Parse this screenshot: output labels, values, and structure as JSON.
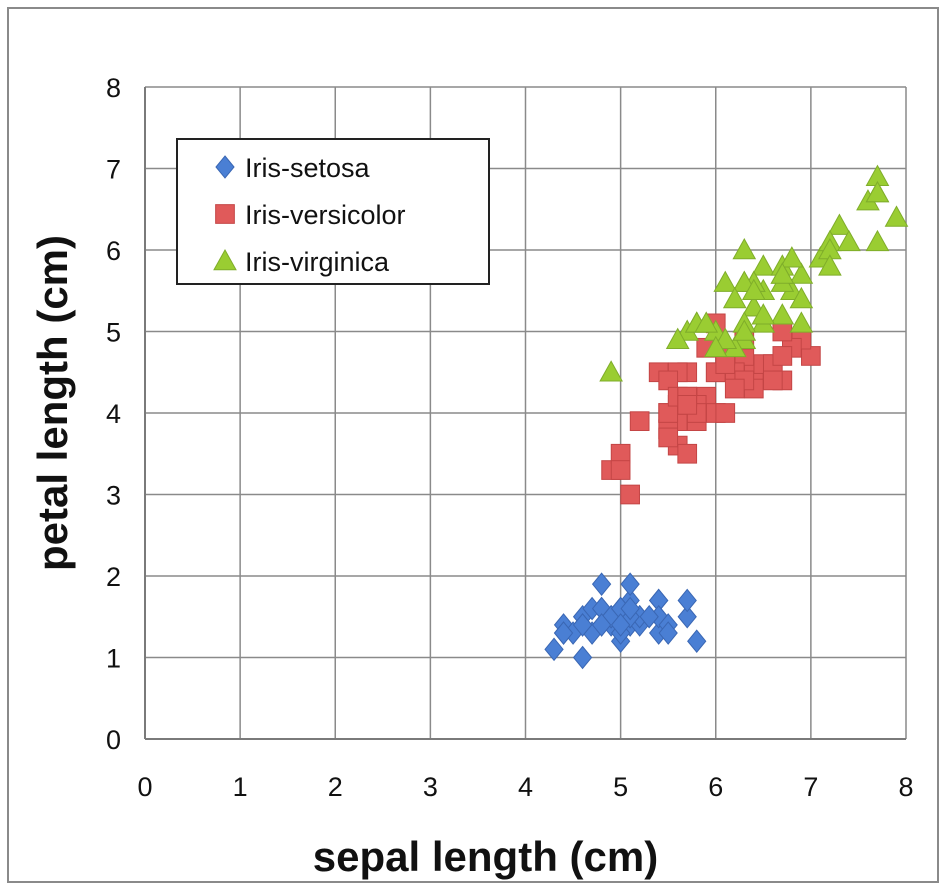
{
  "chart_data": {
    "type": "scatter",
    "title": "",
    "xlabel": "sepal length (cm)",
    "ylabel": "petal length (cm)",
    "xlim": [
      0,
      8
    ],
    "ylim": [
      0,
      8
    ],
    "xticks": [
      0,
      1,
      2,
      3,
      4,
      5,
      6,
      7,
      8
    ],
    "yticks": [
      0,
      1,
      2,
      3,
      4,
      5,
      6,
      7,
      8
    ],
    "grid": true,
    "legend_position": "top-left",
    "series": [
      {
        "name": "Iris-setosa",
        "marker": "diamond",
        "color": "#4a7fd4",
        "points": [
          [
            5.1,
            1.4
          ],
          [
            4.9,
            1.4
          ],
          [
            4.7,
            1.3
          ],
          [
            4.6,
            1.5
          ],
          [
            5.0,
            1.4
          ],
          [
            5.4,
            1.7
          ],
          [
            4.6,
            1.4
          ],
          [
            5.0,
            1.5
          ],
          [
            4.4,
            1.4
          ],
          [
            4.9,
            1.5
          ],
          [
            5.4,
            1.5
          ],
          [
            4.8,
            1.6
          ],
          [
            4.8,
            1.4
          ],
          [
            4.3,
            1.1
          ],
          [
            5.8,
            1.2
          ],
          [
            5.7,
            1.5
          ],
          [
            5.4,
            1.3
          ],
          [
            5.1,
            1.4
          ],
          [
            5.7,
            1.7
          ],
          [
            5.1,
            1.5
          ],
          [
            5.4,
            1.7
          ],
          [
            5.1,
            1.5
          ],
          [
            4.6,
            1.0
          ],
          [
            5.1,
            1.7
          ],
          [
            4.8,
            1.9
          ],
          [
            5.0,
            1.6
          ],
          [
            5.0,
            1.6
          ],
          [
            5.2,
            1.5
          ],
          [
            5.2,
            1.4
          ],
          [
            4.7,
            1.6
          ],
          [
            4.8,
            1.6
          ],
          [
            5.4,
            1.5
          ],
          [
            5.2,
            1.5
          ],
          [
            5.5,
            1.4
          ],
          [
            4.9,
            1.5
          ],
          [
            5.0,
            1.2
          ],
          [
            5.5,
            1.3
          ],
          [
            4.9,
            1.5
          ],
          [
            4.4,
            1.3
          ],
          [
            5.1,
            1.5
          ],
          [
            5.0,
            1.3
          ],
          [
            4.5,
            1.3
          ],
          [
            4.4,
            1.3
          ],
          [
            5.0,
            1.6
          ],
          [
            5.1,
            1.9
          ],
          [
            4.8,
            1.4
          ],
          [
            5.1,
            1.6
          ],
          [
            4.6,
            1.4
          ],
          [
            5.3,
            1.5
          ],
          [
            5.0,
            1.4
          ]
        ]
      },
      {
        "name": "Iris-versicolor",
        "marker": "square",
        "color": "#e05a5a",
        "points": [
          [
            7.0,
            4.7
          ],
          [
            6.4,
            4.5
          ],
          [
            6.9,
            4.9
          ],
          [
            5.5,
            4.0
          ],
          [
            6.5,
            4.6
          ],
          [
            5.7,
            4.5
          ],
          [
            6.3,
            4.7
          ],
          [
            4.9,
            3.3
          ],
          [
            6.6,
            4.6
          ],
          [
            5.2,
            3.9
          ],
          [
            5.0,
            3.5
          ],
          [
            5.9,
            4.2
          ],
          [
            6.0,
            4.0
          ],
          [
            6.1,
            4.7
          ],
          [
            5.6,
            3.6
          ],
          [
            6.7,
            4.4
          ],
          [
            5.6,
            4.5
          ],
          [
            5.8,
            4.1
          ],
          [
            6.2,
            4.5
          ],
          [
            5.6,
            3.9
          ],
          [
            5.9,
            4.8
          ],
          [
            6.1,
            4.0
          ],
          [
            6.3,
            4.9
          ],
          [
            6.1,
            4.7
          ],
          [
            6.4,
            4.3
          ],
          [
            6.6,
            4.4
          ],
          [
            6.8,
            4.8
          ],
          [
            6.7,
            5.0
          ],
          [
            6.0,
            4.5
          ],
          [
            5.7,
            3.5
          ],
          [
            5.5,
            3.8
          ],
          [
            5.5,
            3.7
          ],
          [
            5.8,
            3.9
          ],
          [
            6.0,
            5.1
          ],
          [
            5.4,
            4.5
          ],
          [
            6.0,
            4.5
          ],
          [
            6.7,
            4.7
          ],
          [
            6.3,
            4.4
          ],
          [
            5.6,
            4.1
          ],
          [
            5.5,
            4.0
          ],
          [
            5.5,
            4.4
          ],
          [
            6.1,
            4.6
          ],
          [
            5.8,
            4.0
          ],
          [
            5.0,
            3.3
          ],
          [
            5.6,
            4.2
          ],
          [
            5.7,
            4.2
          ],
          [
            5.7,
            4.2
          ],
          [
            6.2,
            4.3
          ],
          [
            5.1,
            3.0
          ],
          [
            5.7,
            4.1
          ]
        ]
      },
      {
        "name": "Iris-virginica",
        "marker": "triangle",
        "color": "#9acd32",
        "points": [
          [
            6.3,
            6.0
          ],
          [
            5.8,
            5.1
          ],
          [
            7.1,
            5.9
          ],
          [
            6.3,
            5.6
          ],
          [
            6.5,
            5.8
          ],
          [
            7.6,
            6.6
          ],
          [
            4.9,
            4.5
          ],
          [
            7.3,
            6.3
          ],
          [
            6.7,
            5.8
          ],
          [
            7.2,
            6.1
          ],
          [
            6.5,
            5.1
          ],
          [
            6.4,
            5.3
          ],
          [
            6.8,
            5.5
          ],
          [
            5.7,
            5.0
          ],
          [
            5.8,
            5.1
          ],
          [
            6.4,
            5.3
          ],
          [
            6.5,
            5.5
          ],
          [
            7.7,
            6.7
          ],
          [
            7.7,
            6.9
          ],
          [
            6.0,
            5.0
          ],
          [
            6.9,
            5.7
          ],
          [
            5.6,
            4.9
          ],
          [
            7.7,
            6.7
          ],
          [
            6.3,
            4.9
          ],
          [
            6.7,
            5.7
          ],
          [
            7.2,
            6.0
          ],
          [
            6.2,
            4.8
          ],
          [
            6.1,
            4.9
          ],
          [
            6.4,
            5.6
          ],
          [
            7.2,
            5.8
          ],
          [
            7.4,
            6.1
          ],
          [
            7.9,
            6.4
          ],
          [
            6.4,
            5.6
          ],
          [
            6.3,
            5.1
          ],
          [
            6.1,
            5.6
          ],
          [
            7.7,
            6.1
          ],
          [
            6.3,
            5.6
          ],
          [
            6.4,
            5.5
          ],
          [
            6.0,
            4.8
          ],
          [
            6.9,
            5.4
          ],
          [
            6.7,
            5.6
          ],
          [
            6.9,
            5.1
          ],
          [
            5.8,
            5.1
          ],
          [
            6.8,
            5.9
          ],
          [
            6.7,
            5.7
          ],
          [
            6.7,
            5.2
          ],
          [
            6.3,
            5.0
          ],
          [
            6.5,
            5.2
          ],
          [
            6.2,
            5.4
          ],
          [
            5.9,
            5.1
          ]
        ]
      }
    ]
  }
}
